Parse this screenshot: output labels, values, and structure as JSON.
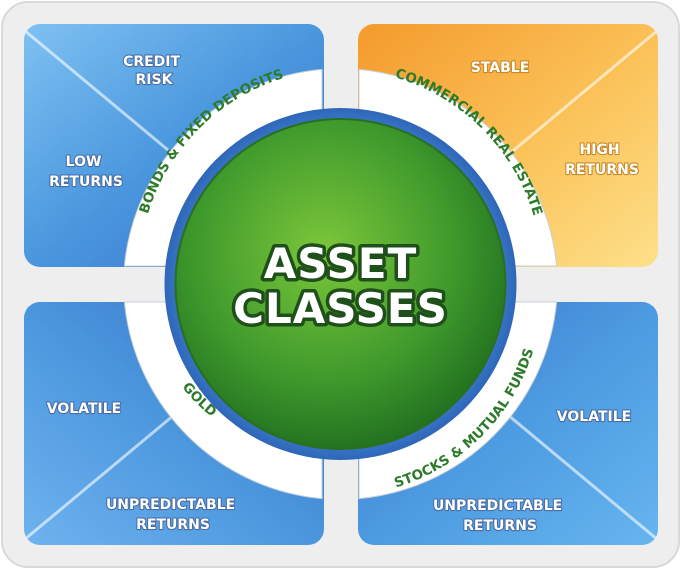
{
  "center": {
    "line1": "ASSET",
    "line2": "CLASSES"
  },
  "colors": {
    "frame": "#eeeeee",
    "blue_quadrant": "#4f93dc",
    "orange_quadrant": "#f6a93a",
    "ring": "#ffffff",
    "ring_text": "#2d7a2a",
    "center_green": "#3c9a2c"
  },
  "quadrants": {
    "top_left": {
      "ring_label": "BONDS & FIXED DEPOSITS",
      "labels": [
        {
          "lines": [
            "CREDIT",
            "RISK"
          ]
        },
        {
          "lines": [
            "LOW",
            "RETURNS"
          ]
        }
      ]
    },
    "top_right": {
      "ring_label": "COMMERCIAL REAL ESTATE",
      "labels": [
        {
          "lines": [
            "STABLE"
          ]
        },
        {
          "lines": [
            "HIGH",
            "RETURNS"
          ]
        }
      ]
    },
    "bottom_left": {
      "ring_label": "GOLD",
      "labels": [
        {
          "lines": [
            "VOLATILE"
          ]
        },
        {
          "lines": [
            "UNPREDICTABLE",
            "RETURNS"
          ]
        }
      ]
    },
    "bottom_right": {
      "ring_label": "STOCKS & MUTUAL FUNDS",
      "labels": [
        {
          "lines": [
            "VOLATILE"
          ]
        },
        {
          "lines": [
            "UNPREDICTABLE",
            "RETURNS"
          ]
        }
      ]
    }
  }
}
